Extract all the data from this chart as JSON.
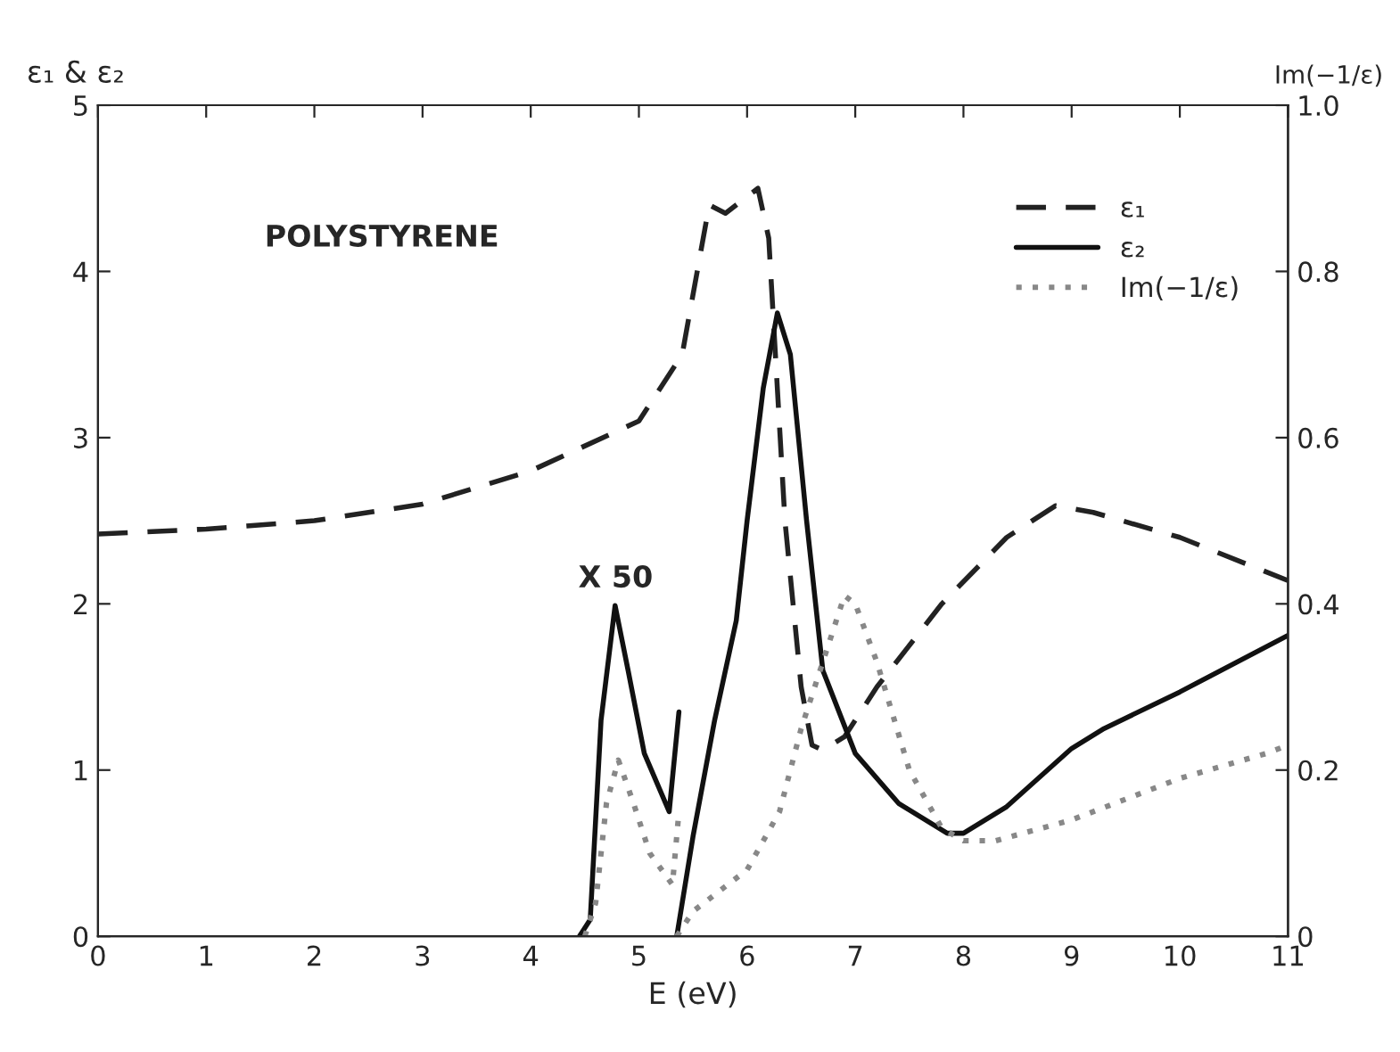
{
  "chart_data": {
    "type": "line",
    "xlabel": "E (eV)",
    "ylabel": "ε₁ & ε₂",
    "y2label": "Im(−1/ε)",
    "annotations": [
      "POLYSTYRENE",
      "X 50"
    ],
    "xlim": [
      0,
      11
    ],
    "xticks": [
      0,
      1,
      2,
      3,
      4,
      5,
      6,
      7,
      8,
      9,
      10,
      11
    ],
    "ylim": [
      0,
      5
    ],
    "yticks": [
      0,
      1,
      2,
      3,
      4,
      5
    ],
    "y2lim": [
      0,
      1.0
    ],
    "y2ticks": [
      0,
      {
        "value": 0.2,
        "label": "0.2"
      },
      {
        "value": 0.4,
        "label": "0.4"
      },
      {
        "value": 0.6,
        "label": "0.6"
      },
      {
        "value": 0.8,
        "label": "0.8"
      },
      {
        "value": 1.0,
        "label": "1.0"
      }
    ],
    "grid": false,
    "legend": "top right",
    "marker": "none",
    "series": [
      {
        "name": "ε₁",
        "color": "#222222",
        "line_style": "dashed",
        "x": [
          0,
          1,
          2,
          3,
          4,
          5,
          5.4,
          5.65,
          5.8,
          6.1,
          6.2,
          6.35,
          6.5,
          6.6,
          6.7,
          6.9,
          7.2,
          7.8,
          8.4,
          8.85,
          9.2,
          10,
          11
        ],
        "values": [
          2.42,
          2.45,
          2.5,
          2.6,
          2.8,
          3.1,
          3.5,
          4.4,
          4.35,
          4.5,
          4.2,
          2.5,
          1.5,
          1.15,
          1.12,
          1.2,
          1.5,
          2.0,
          2.4,
          2.59,
          2.55,
          2.4,
          2.14
        ]
      },
      {
        "name": "ε₂",
        "color": "#111111",
        "line_style": "solid",
        "x": [
          5.35,
          5.5,
          5.7,
          5.9,
          6.0,
          6.15,
          6.28,
          6.4,
          6.55,
          6.7,
          7.0,
          7.4,
          7.85,
          8.0,
          8.4,
          9.0,
          9.3,
          10,
          11
        ],
        "values": [
          0,
          0.6,
          1.3,
          1.9,
          2.5,
          3.3,
          3.75,
          3.5,
          2.5,
          1.6,
          1.1,
          0.8,
          0.62,
          0.62,
          0.78,
          1.13,
          1.25,
          1.47,
          1.81
        ]
      },
      {
        "name": "Im(−1/ε)",
        "color": "#888888",
        "line_style": "dotted",
        "axis": "y2",
        "x": [
          5.35,
          5.5,
          6.0,
          6.3,
          6.5,
          6.7,
          6.9,
          7.0,
          7.2,
          7.5,
          7.8,
          8.0,
          8.3,
          9.0,
          10,
          10.8,
          11
        ],
        "values": [
          0,
          0.03,
          0.08,
          0.15,
          0.25,
          0.33,
          0.41,
          0.4,
          0.33,
          0.2,
          0.13,
          0.115,
          0.115,
          0.14,
          0.19,
          0.22,
          0.23
        ]
      },
      {
        "color": "#111111",
        "line_style": "solid",
        "x": [
          4.45,
          4.55,
          4.65,
          4.78,
          4.9,
          5.05,
          5.28,
          5.37
        ],
        "values": [
          0,
          0.1,
          1.3,
          1.99,
          1.6,
          1.1,
          0.75,
          1.35
        ]
      },
      {
        "color": "#888888",
        "line_style": "dotted",
        "x": [
          4.5,
          4.6,
          4.7,
          4.81,
          4.95,
          5.1,
          5.31,
          5.37
        ],
        "values": [
          0,
          0.2,
          0.8,
          1.06,
          0.8,
          0.5,
          0.31,
          0.75
        ]
      }
    ]
  }
}
